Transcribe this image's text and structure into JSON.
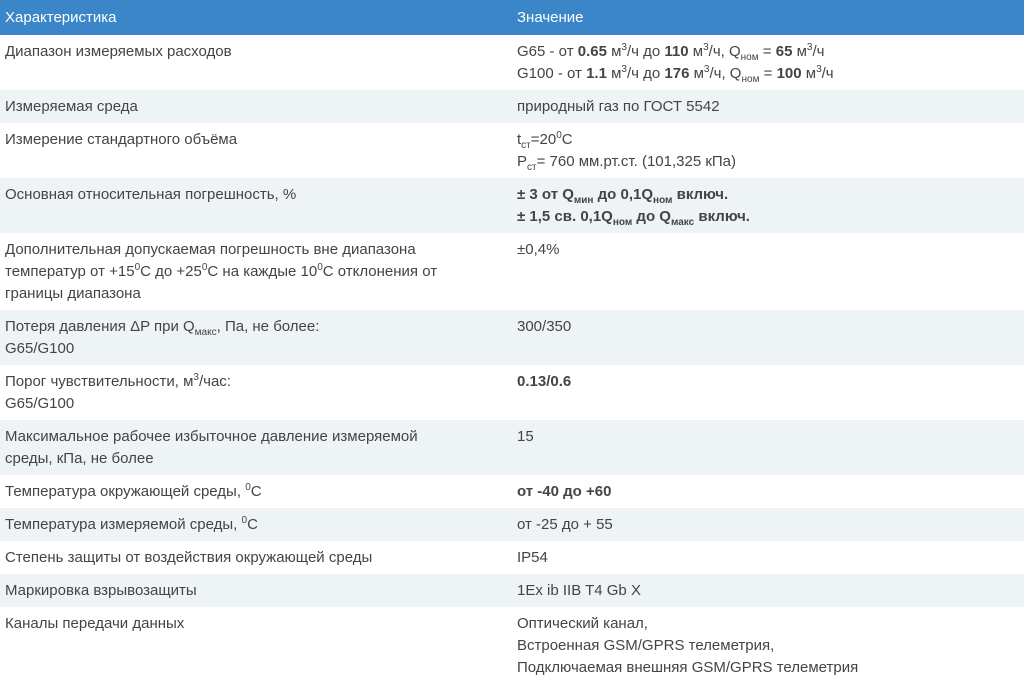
{
  "header": {
    "col1": "Характеристика",
    "col2": "Значение"
  },
  "colors": {
    "header_bg": "#3a86c8",
    "stripe": "#eef3f6"
  },
  "rows": [
    {
      "name": [
        [
          "Диапазон измеряемых расходов"
        ]
      ],
      "value": [
        [
          "G65 - от ",
          {
            "t": "0.65",
            "s": "b"
          },
          " м",
          {
            "t": "3",
            "s": "sup"
          },
          "/ч до ",
          {
            "t": "110",
            "s": "b"
          },
          " м",
          {
            "t": "3",
            "s": "sup"
          },
          "/ч, Q",
          {
            "t": "ном",
            "s": "sub"
          },
          " = ",
          {
            "t": "65",
            "s": "b"
          },
          " м",
          {
            "t": "3",
            "s": "sup"
          },
          "/ч"
        ],
        [
          "G100 - от ",
          {
            "t": "1.1",
            "s": "b"
          },
          " м",
          {
            "t": "3",
            "s": "sup"
          },
          "/ч до ",
          {
            "t": "176",
            "s": "b"
          },
          " м",
          {
            "t": "3",
            "s": "sup"
          },
          "/ч, Q",
          {
            "t": "ном",
            "s": "sub"
          },
          " = ",
          {
            "t": "100",
            "s": "b"
          },
          " м",
          {
            "t": "3",
            "s": "sup"
          },
          "/ч"
        ]
      ]
    },
    {
      "name": [
        [
          "Измеряемая среда"
        ]
      ],
      "value": [
        [
          "природный газ по ГОСТ 5542"
        ]
      ]
    },
    {
      "name": [
        [
          "Измерение стандартного объёма"
        ]
      ],
      "value": [
        [
          "t",
          {
            "t": "ст",
            "s": "sub"
          },
          "=20",
          {
            "t": "0",
            "s": "sup"
          },
          "C"
        ],
        [
          "P",
          {
            "t": "ст",
            "s": "sub"
          },
          "= 760 мм.рт.ст. (101,325 кПа)"
        ]
      ]
    },
    {
      "name": [
        [
          "Основная относительная погрешность, %"
        ]
      ],
      "value": [
        [
          {
            "t": "± 3 от Q",
            "s": "b"
          },
          {
            "t": "мин",
            "s": "bsub"
          },
          {
            "t": " до 0,1Q",
            "s": "b"
          },
          {
            "t": "ном",
            "s": "bsub"
          },
          {
            "t": " включ.",
            "s": "b"
          }
        ],
        [
          {
            "t": "± 1,5 св. 0,1Q",
            "s": "b"
          },
          {
            "t": "ном",
            "s": "bsub"
          },
          {
            "t": " до Q",
            "s": "b"
          },
          {
            "t": "макс",
            "s": "bsub"
          },
          {
            "t": " включ.",
            "s": "b"
          }
        ]
      ]
    },
    {
      "name": [
        [
          "Дополнительная допускаемая погрешность вне диапазона"
        ],
        [
          "температур от +15",
          {
            "t": "0",
            "s": "sup"
          },
          "C до +25",
          {
            "t": "0",
            "s": "sup"
          },
          "C на каждые 10",
          {
            "t": "0",
            "s": "sup"
          },
          "C отклонения от"
        ],
        [
          "границы диапазона"
        ]
      ],
      "value": [
        [
          "±0,4%"
        ]
      ]
    },
    {
      "name": [
        [
          "Потеря давления ΔP при Q",
          {
            "t": "макс",
            "s": "sub"
          },
          ", Па, не более:"
        ],
        [
          "G65/G100"
        ]
      ],
      "value": [
        [
          "300/350"
        ]
      ]
    },
    {
      "name": [
        [
          "Порог чувствительности, м",
          {
            "t": "3",
            "s": "sup"
          },
          "/час:"
        ],
        [
          "G65/G100"
        ]
      ],
      "value": [
        [
          {
            "t": "0.13/0.6",
            "s": "b"
          }
        ]
      ]
    },
    {
      "name": [
        [
          "Максимальное рабочее избыточное давление измеряемой"
        ],
        [
          "среды, кПа, не более"
        ]
      ],
      "value": [
        [
          "15"
        ]
      ]
    },
    {
      "name": [
        [
          "Температура окружающей среды, ",
          {
            "t": "0",
            "s": "sup"
          },
          "C"
        ]
      ],
      "value": [
        [
          {
            "t": "от -40 до +60",
            "s": "b"
          }
        ]
      ]
    },
    {
      "name": [
        [
          "Температура измеряемой среды, ",
          {
            "t": "0",
            "s": "sup"
          },
          "C"
        ]
      ],
      "value": [
        [
          "от -25 до + 55"
        ]
      ]
    },
    {
      "name": [
        [
          "Степень защиты от воздействия окружающей среды"
        ]
      ],
      "value": [
        [
          "IP54"
        ]
      ]
    },
    {
      "name": [
        [
          " Маркировка взрывозащиты"
        ]
      ],
      "value": [
        [
          "1Ex ib IIB T4 Gb X"
        ]
      ]
    },
    {
      "name": [
        [
          "Каналы передачи данных"
        ]
      ],
      "value": [
        [
          "Оптический канал,"
        ],
        [
          "Встроенная GSM/GPRS телеметрия,"
        ],
        [
          "Подключаемая внешняя GSM/GPRS телеметрия"
        ]
      ]
    }
  ]
}
